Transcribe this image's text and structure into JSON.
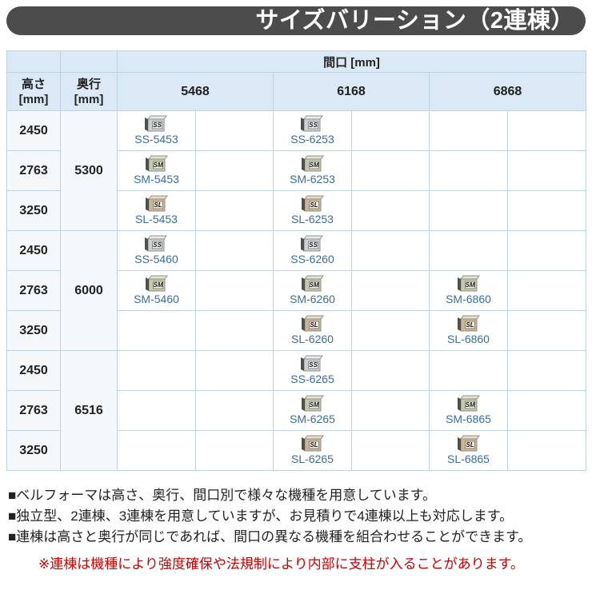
{
  "title": "サイズバリーション（2連棟）",
  "table": {
    "span_header": "間口 [mm]",
    "corner_height": {
      "label": "高さ",
      "unit": "[mm]"
    },
    "corner_depth": {
      "label": "奥行",
      "unit": "[mm]"
    },
    "width_headers": [
      "5468",
      "6168",
      "6868"
    ],
    "groups": [
      {
        "depth": "5300",
        "rows": [
          {
            "height": "2450",
            "cells": [
              "SS-5453",
              "",
              "SS-6253",
              "",
              "",
              ""
            ]
          },
          {
            "height": "2763",
            "cells": [
              "SM-5453",
              "",
              "SM-6253",
              "",
              "",
              ""
            ]
          },
          {
            "height": "3250",
            "cells": [
              "SL-5453",
              "",
              "SL-6253",
              "",
              "",
              ""
            ]
          }
        ]
      },
      {
        "depth": "6000",
        "rows": [
          {
            "height": "2450",
            "cells": [
              "SS-5460",
              "",
              "SS-6260",
              "",
              "",
              ""
            ]
          },
          {
            "height": "2763",
            "cells": [
              "SM-5460",
              "",
              "SM-6260",
              "",
              "SM-6860",
              ""
            ]
          },
          {
            "height": "3250",
            "cells": [
              "",
              "",
              "SL-6260",
              "",
              "SL-6860",
              ""
            ]
          }
        ]
      },
      {
        "depth": "6516",
        "rows": [
          {
            "height": "2450",
            "cells": [
              "",
              "",
              "SS-6265",
              "",
              "",
              ""
            ]
          },
          {
            "height": "2763",
            "cells": [
              "",
              "",
              "SM-6265",
              "",
              "SM-6865",
              ""
            ]
          },
          {
            "height": "3250",
            "cells": [
              "",
              "",
              "SL-6265",
              "",
              "SL-6865",
              ""
            ]
          }
        ]
      }
    ]
  },
  "icon_variants": {
    "SS": {
      "front": "#ccd1d6",
      "top": "#e9ecef",
      "plate": "#eef1f3"
    },
    "SM": {
      "front": "#c6c9ad",
      "top": "#e2e4d2",
      "plate": "#eef0e0"
    },
    "SL": {
      "front": "#cdb694",
      "top": "#e8dcc6",
      "plate": "#f2e8d8"
    }
  },
  "notes": [
    "■ベルフォーマは高さ、奥行、間口別で様々な機種を用意しています。",
    "■独立型、2連棟、3連棟を用意していますが、お見積りで4連棟以上も対応します。",
    "■連棟は高さと奥行が同じであれば、間口の異なる機種を組合わせることができます。"
  ],
  "warning": "※連棟は機種により強度確保や法規制により内部に支柱が入ることがあります。",
  "colors": {
    "title_bar": "#4c4c4c",
    "title_text": "#ffffff",
    "header_bg": "#dbe8f5",
    "row_header_bg": "#f4f8fb",
    "border": "#c2d1de",
    "outer_border": "#9db3c8",
    "product_link": "#3a6c9e",
    "body_text": "#222222",
    "warning_text": "#cc0000",
    "icon_edge": "#8f9089",
    "icon_door": "#50504a"
  }
}
